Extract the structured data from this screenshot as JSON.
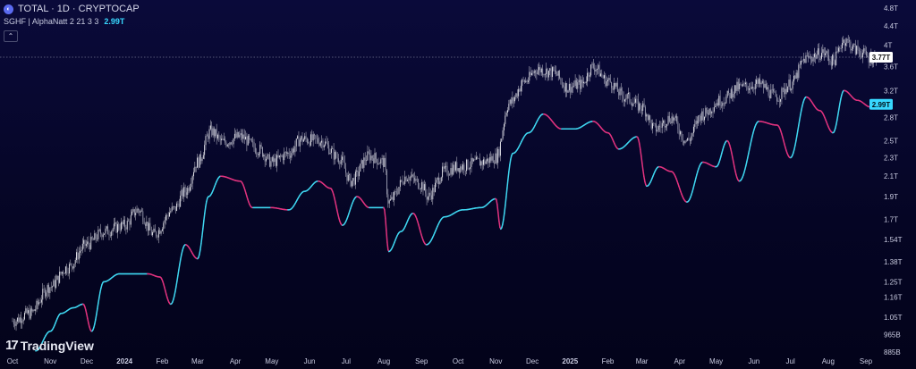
{
  "header": {
    "icon": "total-market-icon",
    "title": "TOTAL · 1D · CRYPTOCAP"
  },
  "indicator": {
    "name": "SGHF | AlphaNatt 2 21 3 3",
    "value": "2.99T"
  },
  "collapse_icon": "chevron-up-icon",
  "logo": {
    "mark": "17",
    "text": "TradingView"
  },
  "colors": {
    "background": "#06062a",
    "candles": "#e8e8ee",
    "indicator_up": "#3fd6f0",
    "indicator_down": "#e0327e",
    "axis_text": "#c9cbe0",
    "price_tag_bg": "#ffffff",
    "indicator_tag_bg": "#38d8ff"
  },
  "chart_data": {
    "type": "line",
    "x_ticks": [
      "Oct",
      "Nov",
      "Dec",
      "2024",
      "Feb",
      "Mar",
      "Apr",
      "May",
      "Jun",
      "Jul",
      "Aug",
      "Sep",
      "Oct",
      "Nov",
      "Dec",
      "2025",
      "Feb",
      "Mar",
      "Apr",
      "May",
      "Jun",
      "Jul",
      "Aug",
      "Sep"
    ],
    "y_scale": "log",
    "y_ticks": [
      "4.8T",
      "4.4T",
      "4T",
      "3.6T",
      "3.2T",
      "2.8T",
      "2.5T",
      "2.3T",
      "2.1T",
      "1.9T",
      "1.7T",
      "1.54T",
      "1.38T",
      "1.25T",
      "1.16T",
      "1.05T",
      "965B",
      "885B"
    ],
    "current_price_label": "3.77T",
    "current_indicator_label": "2.99T",
    "series": [
      {
        "name": "TOTAL",
        "style": "candlestick",
        "points": [
          [
            "2023-10-01",
            1.03
          ],
          [
            "2023-10-15",
            1.07
          ],
          [
            "2023-11-01",
            1.22
          ],
          [
            "2023-11-15",
            1.34
          ],
          [
            "2023-12-01",
            1.5
          ],
          [
            "2023-12-15",
            1.6
          ],
          [
            "2024-01-01",
            1.65
          ],
          [
            "2024-01-12",
            1.78
          ],
          [
            "2024-01-25",
            1.58
          ],
          [
            "2024-02-10",
            1.78
          ],
          [
            "2024-02-20",
            1.95
          ],
          [
            "2024-03-01",
            2.25
          ],
          [
            "2024-03-12",
            2.62
          ],
          [
            "2024-03-22",
            2.48
          ],
          [
            "2024-04-05",
            2.55
          ],
          [
            "2024-04-20",
            2.4
          ],
          [
            "2024-05-01",
            2.25
          ],
          [
            "2024-05-15",
            2.35
          ],
          [
            "2024-05-25",
            2.52
          ],
          [
            "2024-06-10",
            2.5
          ],
          [
            "2024-06-25",
            2.3
          ],
          [
            "2024-07-05",
            2.05
          ],
          [
            "2024-07-20",
            2.32
          ],
          [
            "2024-08-01",
            2.25
          ],
          [
            "2024-08-05",
            1.85
          ],
          [
            "2024-08-20",
            2.1
          ],
          [
            "2024-09-01",
            2.02
          ],
          [
            "2024-09-06",
            1.9
          ],
          [
            "2024-09-20",
            2.15
          ],
          [
            "2024-10-01",
            2.2
          ],
          [
            "2024-10-20",
            2.25
          ],
          [
            "2024-11-01",
            2.3
          ],
          [
            "2024-11-12",
            3.0
          ],
          [
            "2024-11-25",
            3.35
          ],
          [
            "2024-12-05",
            3.55
          ],
          [
            "2024-12-18",
            3.5
          ],
          [
            "2024-12-30",
            3.25
          ],
          [
            "2025-01-10",
            3.3
          ],
          [
            "2025-01-20",
            3.6
          ],
          [
            "2025-02-01",
            3.35
          ],
          [
            "2025-02-15",
            3.1
          ],
          [
            "2025-03-01",
            2.95
          ],
          [
            "2025-03-12",
            2.65
          ],
          [
            "2025-03-25",
            2.8
          ],
          [
            "2025-04-07",
            2.5
          ],
          [
            "2025-04-20",
            2.85
          ],
          [
            "2025-05-05",
            3.05
          ],
          [
            "2025-05-20",
            3.25
          ],
          [
            "2025-06-05",
            3.3
          ],
          [
            "2025-06-20",
            3.1
          ],
          [
            "2025-07-01",
            3.3
          ],
          [
            "2025-07-14",
            3.75
          ],
          [
            "2025-07-28",
            3.85
          ],
          [
            "2025-08-05",
            3.7
          ],
          [
            "2025-08-14",
            4.1
          ],
          [
            "2025-08-25",
            3.9
          ],
          [
            "2025-09-05",
            3.75
          ],
          [
            "2025-09-10",
            3.77
          ]
        ]
      },
      {
        "name": "SGHF",
        "style": "line",
        "points": [
          [
            "2023-10-20",
            0.89
          ],
          [
            "2023-11-01",
            0.98
          ],
          [
            "2023-11-10",
            1.07
          ],
          [
            "2023-11-20",
            1.1
          ],
          [
            "2023-11-28",
            1.12
          ],
          [
            "2023-12-05",
            0.98
          ],
          [
            "2023-12-15",
            1.25
          ],
          [
            "2023-12-28",
            1.3
          ],
          [
            "2024-01-10",
            1.3
          ],
          [
            "2024-01-20",
            1.3
          ],
          [
            "2024-01-30",
            1.28
          ],
          [
            "2024-02-08",
            1.12
          ],
          [
            "2024-02-20",
            1.5
          ],
          [
            "2024-03-01",
            1.4
          ],
          [
            "2024-03-10",
            1.9
          ],
          [
            "2024-03-20",
            2.1
          ],
          [
            "2024-04-05",
            2.05
          ],
          [
            "2024-04-15",
            1.8
          ],
          [
            "2024-04-30",
            1.8
          ],
          [
            "2024-05-15",
            1.78
          ],
          [
            "2024-05-28",
            1.95
          ],
          [
            "2024-06-08",
            2.05
          ],
          [
            "2024-06-18",
            1.98
          ],
          [
            "2024-06-28",
            1.65
          ],
          [
            "2024-07-10",
            1.9
          ],
          [
            "2024-07-20",
            1.8
          ],
          [
            "2024-08-01",
            1.8
          ],
          [
            "2024-08-05",
            1.45
          ],
          [
            "2024-08-15",
            1.6
          ],
          [
            "2024-08-25",
            1.75
          ],
          [
            "2024-09-05",
            1.5
          ],
          [
            "2024-09-20",
            1.72
          ],
          [
            "2024-10-05",
            1.78
          ],
          [
            "2024-10-20",
            1.8
          ],
          [
            "2024-11-01",
            1.88
          ],
          [
            "2024-11-05",
            1.62
          ],
          [
            "2024-11-15",
            2.35
          ],
          [
            "2024-11-28",
            2.6
          ],
          [
            "2024-12-10",
            2.85
          ],
          [
            "2024-12-25",
            2.65
          ],
          [
            "2025-01-05",
            2.65
          ],
          [
            "2025-01-20",
            2.75
          ],
          [
            "2025-02-01",
            2.6
          ],
          [
            "2025-02-10",
            2.4
          ],
          [
            "2025-02-25",
            2.55
          ],
          [
            "2025-03-05",
            2.0
          ],
          [
            "2025-03-15",
            2.2
          ],
          [
            "2025-03-25",
            2.15
          ],
          [
            "2025-04-07",
            1.85
          ],
          [
            "2025-04-20",
            2.25
          ],
          [
            "2025-05-01",
            2.2
          ],
          [
            "2025-05-10",
            2.5
          ],
          [
            "2025-05-20",
            2.05
          ],
          [
            "2025-06-05",
            2.75
          ],
          [
            "2025-06-20",
            2.7
          ],
          [
            "2025-07-01",
            2.3
          ],
          [
            "2025-07-14",
            3.1
          ],
          [
            "2025-07-25",
            2.9
          ],
          [
            "2025-08-05",
            2.6
          ],
          [
            "2025-08-14",
            3.2
          ],
          [
            "2025-08-25",
            3.05
          ],
          [
            "2025-09-05",
            2.95
          ],
          [
            "2025-09-10",
            2.99
          ]
        ]
      }
    ]
  }
}
